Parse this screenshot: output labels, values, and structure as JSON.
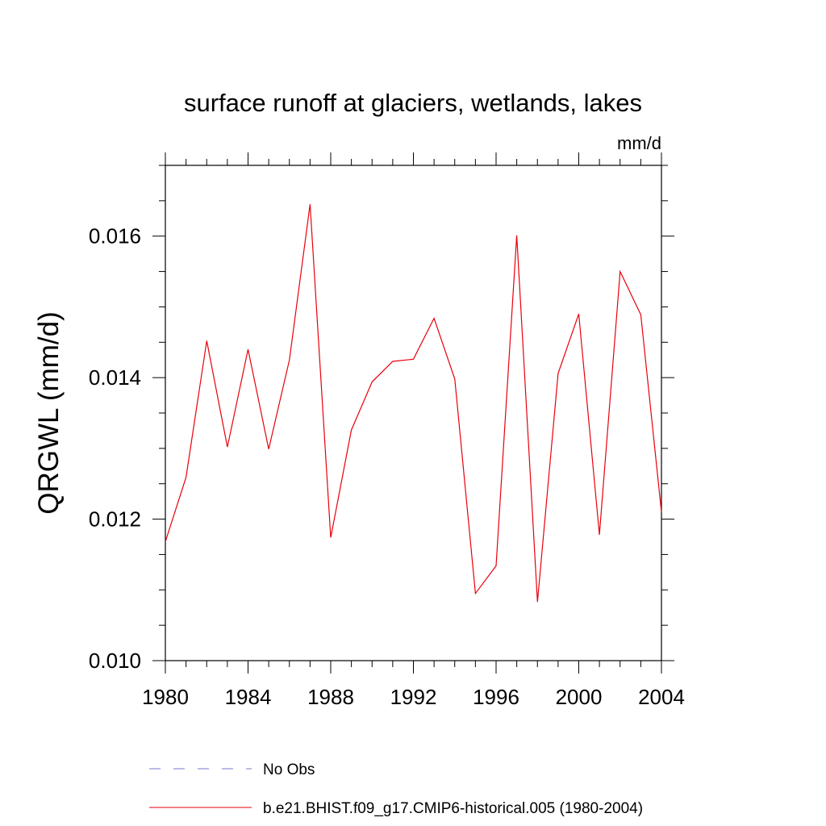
{
  "chart_data": {
    "type": "line",
    "title": "surface runoff at glaciers, wetlands, lakes",
    "units": "mm/d",
    "ylabel": "QRGWL  (mm/d)",
    "xlim": [
      1980,
      2004
    ],
    "ylim": [
      0.01,
      0.017
    ],
    "x_ticks": [
      "1980",
      "1984",
      "1988",
      "1992",
      "1996",
      "2000",
      "2004"
    ],
    "y_ticks": [
      "0.010",
      "0.012",
      "0.014",
      "0.016"
    ],
    "legend": {
      "placement": "bottom",
      "entries": [
        {
          "label": "No Obs",
          "color": "#7777cc",
          "style": "dashed"
        },
        {
          "label": "b.e21.BHIST.f09_g17.CMIP6-historical.005 (1980-2004)",
          "color": "#e8000b",
          "style": "solid"
        }
      ]
    },
    "series": [
      {
        "name": "b.e21.BHIST.f09_g17.CMIP6-historical.005 (1980-2004)",
        "color": "#e8000b",
        "x": [
          1980,
          1981,
          1982,
          1983,
          1984,
          1985,
          1986,
          1987,
          1988,
          1989,
          1990,
          1991,
          1992,
          1993,
          1994,
          1995,
          1996,
          1997,
          1998,
          1999,
          2000,
          2001,
          2002,
          2003,
          2004
        ],
        "values": [
          0.01168,
          0.01259,
          0.01452,
          0.01302,
          0.0144,
          0.01299,
          0.01425,
          0.01645,
          0.01174,
          0.01326,
          0.01394,
          0.01423,
          0.01426,
          0.01484,
          0.01398,
          0.01095,
          0.01134,
          0.01601,
          0.01083,
          0.01406,
          0.0149,
          0.01178,
          0.0155,
          0.01489,
          0.0121
        ]
      }
    ]
  }
}
